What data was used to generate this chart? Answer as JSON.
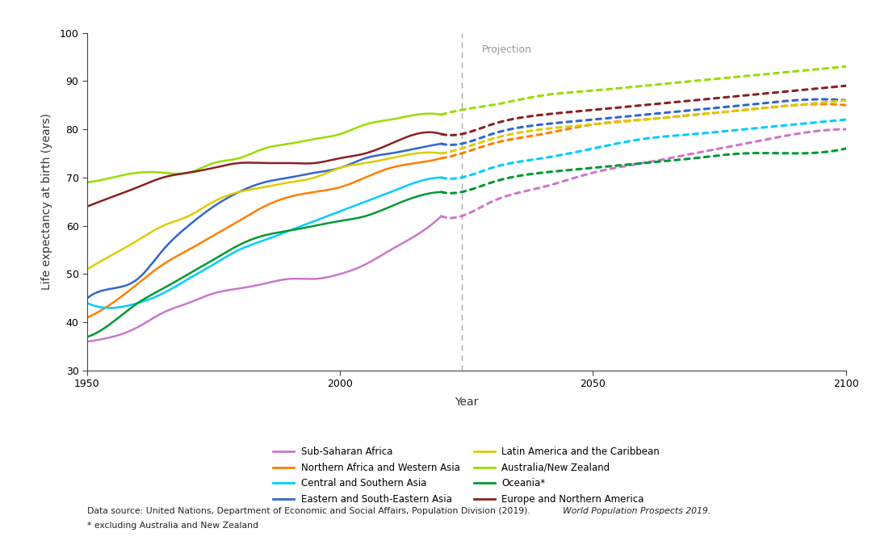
{
  "title": "",
  "ylabel": "Life expectancy at birth (years)",
  "xlabel": "Year",
  "ylim": [
    30,
    100
  ],
  "xlim": [
    1950,
    2100
  ],
  "yticks": [
    30,
    40,
    50,
    60,
    70,
    80,
    90,
    100
  ],
  "xticks": [
    1950,
    2000,
    2050,
    2100
  ],
  "projection_year": 2024,
  "projection_label": "Projection",
  "background_color": "#ffffff",
  "series": [
    {
      "name": "Sub-Saharan Africa",
      "color": "#CC77CC",
      "historical": [
        [
          1950,
          36
        ],
        [
          1955,
          37
        ],
        [
          1960,
          39
        ],
        [
          1965,
          42
        ],
        [
          1970,
          44
        ],
        [
          1975,
          46
        ],
        [
          1980,
          47
        ],
        [
          1985,
          48
        ],
        [
          1990,
          49
        ],
        [
          1995,
          49
        ],
        [
          2000,
          50
        ],
        [
          2005,
          52
        ],
        [
          2010,
          55
        ],
        [
          2015,
          58
        ],
        [
          2020,
          62
        ]
      ],
      "projection": [
        [
          2024,
          62
        ],
        [
          2030,
          65
        ],
        [
          2040,
          68
        ],
        [
          2050,
          71
        ],
        [
          2060,
          73
        ],
        [
          2070,
          75
        ],
        [
          2080,
          77
        ],
        [
          2090,
          79
        ],
        [
          2100,
          80
        ]
      ]
    },
    {
      "name": "Northern Africa and Western Asia",
      "color": "#FF7F00",
      "historical": [
        [
          1950,
          41
        ],
        [
          1955,
          44
        ],
        [
          1960,
          48
        ],
        [
          1965,
          52
        ],
        [
          1970,
          55
        ],
        [
          1975,
          58
        ],
        [
          1980,
          61
        ],
        [
          1985,
          64
        ],
        [
          1990,
          66
        ],
        [
          1995,
          67
        ],
        [
          2000,
          68
        ],
        [
          2005,
          70
        ],
        [
          2010,
          72
        ],
        [
          2015,
          73
        ],
        [
          2020,
          74
        ]
      ],
      "projection": [
        [
          2024,
          75
        ],
        [
          2030,
          77
        ],
        [
          2040,
          79
        ],
        [
          2050,
          81
        ],
        [
          2060,
          82
        ],
        [
          2070,
          83
        ],
        [
          2080,
          84
        ],
        [
          2090,
          85
        ],
        [
          2100,
          85
        ]
      ]
    },
    {
      "name": "Central and Southern Asia",
      "color": "#00CCFF",
      "historical": [
        [
          1950,
          44
        ],
        [
          1955,
          43
        ],
        [
          1960,
          44
        ],
        [
          1965,
          46
        ],
        [
          1970,
          49
        ],
        [
          1975,
          52
        ],
        [
          1980,
          55
        ],
        [
          1985,
          57
        ],
        [
          1990,
          59
        ],
        [
          1995,
          61
        ],
        [
          2000,
          63
        ],
        [
          2005,
          65
        ],
        [
          2010,
          67
        ],
        [
          2015,
          69
        ],
        [
          2020,
          70
        ]
      ],
      "projection": [
        [
          2024,
          70
        ],
        [
          2030,
          72
        ],
        [
          2040,
          74
        ],
        [
          2050,
          76
        ],
        [
          2060,
          78
        ],
        [
          2070,
          79
        ],
        [
          2080,
          80
        ],
        [
          2090,
          81
        ],
        [
          2100,
          82
        ]
      ]
    },
    {
      "name": "Eastern and South-Eastern Asia",
      "color": "#3366CC",
      "historical": [
        [
          1950,
          45
        ],
        [
          1955,
          47
        ],
        [
          1960,
          49
        ],
        [
          1965,
          55
        ],
        [
          1970,
          60
        ],
        [
          1975,
          64
        ],
        [
          1980,
          67
        ],
        [
          1985,
          69
        ],
        [
          1990,
          70
        ],
        [
          1995,
          71
        ],
        [
          2000,
          72
        ],
        [
          2005,
          74
        ],
        [
          2010,
          75
        ],
        [
          2015,
          76
        ],
        [
          2020,
          77
        ]
      ],
      "projection": [
        [
          2024,
          77
        ],
        [
          2030,
          79
        ],
        [
          2040,
          81
        ],
        [
          2050,
          82
        ],
        [
          2060,
          83
        ],
        [
          2070,
          84
        ],
        [
          2080,
          85
        ],
        [
          2090,
          86
        ],
        [
          2100,
          86
        ]
      ]
    },
    {
      "name": "Latin America and the Caribbean",
      "color": "#DDCC00",
      "historical": [
        [
          1950,
          51
        ],
        [
          1955,
          54
        ],
        [
          1960,
          57
        ],
        [
          1965,
          60
        ],
        [
          1970,
          62
        ],
        [
          1975,
          65
        ],
        [
          1980,
          67
        ],
        [
          1985,
          68
        ],
        [
          1990,
          69
        ],
        [
          1995,
          70
        ],
        [
          2000,
          72
        ],
        [
          2005,
          73
        ],
        [
          2010,
          74
        ],
        [
          2015,
          75
        ],
        [
          2020,
          75
        ]
      ],
      "projection": [
        [
          2024,
          76
        ],
        [
          2030,
          78
        ],
        [
          2040,
          80
        ],
        [
          2050,
          81
        ],
        [
          2060,
          82
        ],
        [
          2070,
          83
        ],
        [
          2080,
          84
        ],
        [
          2090,
          85
        ],
        [
          2100,
          86
        ]
      ]
    },
    {
      "name": "Australia/New Zealand",
      "color": "#99DD00",
      "historical": [
        [
          1950,
          69
        ],
        [
          1955,
          70
        ],
        [
          1960,
          71
        ],
        [
          1965,
          71
        ],
        [
          1970,
          71
        ],
        [
          1975,
          73
        ],
        [
          1980,
          74
        ],
        [
          1985,
          76
        ],
        [
          1990,
          77
        ],
        [
          1995,
          78
        ],
        [
          2000,
          79
        ],
        [
          2005,
          81
        ],
        [
          2010,
          82
        ],
        [
          2015,
          83
        ],
        [
          2020,
          83
        ]
      ],
      "projection": [
        [
          2024,
          84
        ],
        [
          2030,
          85
        ],
        [
          2040,
          87
        ],
        [
          2050,
          88
        ],
        [
          2060,
          89
        ],
        [
          2070,
          90
        ],
        [
          2080,
          91
        ],
        [
          2090,
          92
        ],
        [
          2100,
          93
        ]
      ]
    },
    {
      "name": "Oceania*",
      "color": "#009933",
      "historical": [
        [
          1950,
          37
        ],
        [
          1955,
          40
        ],
        [
          1960,
          44
        ],
        [
          1965,
          47
        ],
        [
          1970,
          50
        ],
        [
          1975,
          53
        ],
        [
          1980,
          56
        ],
        [
          1985,
          58
        ],
        [
          1990,
          59
        ],
        [
          1995,
          60
        ],
        [
          2000,
          61
        ],
        [
          2005,
          62
        ],
        [
          2010,
          64
        ],
        [
          2015,
          66
        ],
        [
          2020,
          67
        ]
      ],
      "projection": [
        [
          2024,
          67
        ],
        [
          2030,
          69
        ],
        [
          2040,
          71
        ],
        [
          2050,
          72
        ],
        [
          2060,
          73
        ],
        [
          2070,
          74
        ],
        [
          2080,
          75
        ],
        [
          2090,
          75
        ],
        [
          2100,
          76
        ]
      ]
    },
    {
      "name": "Europe and Northern America",
      "color": "#882222",
      "historical": [
        [
          1950,
          64
        ],
        [
          1955,
          66
        ],
        [
          1960,
          68
        ],
        [
          1965,
          70
        ],
        [
          1970,
          71
        ],
        [
          1975,
          72
        ],
        [
          1980,
          73
        ],
        [
          1985,
          73
        ],
        [
          1990,
          73
        ],
        [
          1995,
          73
        ],
        [
          2000,
          74
        ],
        [
          2005,
          75
        ],
        [
          2010,
          77
        ],
        [
          2015,
          79
        ],
        [
          2020,
          79
        ]
      ],
      "projection": [
        [
          2024,
          79
        ],
        [
          2030,
          81
        ],
        [
          2040,
          83
        ],
        [
          2050,
          84
        ],
        [
          2060,
          85
        ],
        [
          2070,
          86
        ],
        [
          2080,
          87
        ],
        [
          2090,
          88
        ],
        [
          2100,
          89
        ]
      ]
    }
  ],
  "legend_col1": [
    {
      "name": "Sub-Saharan Africa",
      "color": "#CC77CC"
    },
    {
      "name": "Northern Africa and Western Asia",
      "color": "#FF7F00"
    },
    {
      "name": "Central and Southern Asia",
      "color": "#00CCFF"
    },
    {
      "name": "Eastern and South-Eastern Asia",
      "color": "#3366CC"
    }
  ],
  "legend_col2": [
    {
      "name": "Latin America and the Caribbean",
      "color": "#DDCC00"
    },
    {
      "name": "Australia/New Zealand",
      "color": "#99DD00"
    },
    {
      "name": "Oceania*",
      "color": "#009933"
    },
    {
      "name": "Europe and Northern America",
      "color": "#882222"
    }
  ],
  "footnote_normal": "Data source: United Nations, Department of Economic and Social Affairs, Population Division (2019). ",
  "footnote_italic": "World Population Prospects 2019.",
  "footnote2": "* excluding Australia and New Zealand"
}
